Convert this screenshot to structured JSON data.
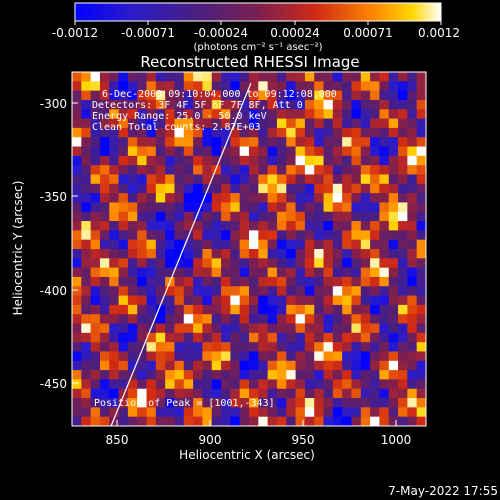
{
  "colorbar": {
    "ticks": [
      "-0.0012",
      "-0.00071",
      "-0.00024",
      "0.00024",
      "0.00071",
      "0.0012"
    ],
    "unit_label": "(photons cm⁻² s⁻¹ asec⁻²)",
    "range": [
      -0.0012,
      0.0012
    ]
  },
  "chart_data": {
    "type": "heatmap",
    "title": "Reconstructed RHESSI Image",
    "xlabel": "Heliocentric X (arcsec)",
    "ylabel": "Heliocentric Y (arcsec)",
    "xlim": [
      826,
      1016
    ],
    "ylim": [
      -474,
      -284
    ],
    "xticks": [
      850,
      900,
      950,
      1000
    ],
    "yticks": [
      -300,
      -350,
      -400,
      -450
    ],
    "colormap": "blue-purple-red-yellow-white",
    "annotations": {
      "line1": "6-Dec-2003 09:10:04.000 to 09:12:08.000",
      "line2": "Detectors: 3F 4F 5F 6F 7F 8F, Att 0",
      "line3": "Energy Range: 25.0 - 50.0 keV",
      "line4": "Clean    Total counts: 2.87E+03",
      "peak": "Position of Peak = [1001,-343]"
    },
    "limb_line": [
      [
        847,
        -474
      ],
      [
        922,
        -290
      ]
    ]
  },
  "footer": {
    "timestamp": "7-May-2022 17:55"
  },
  "colors": {
    "background": "#000000",
    "text": "#ffffff"
  }
}
